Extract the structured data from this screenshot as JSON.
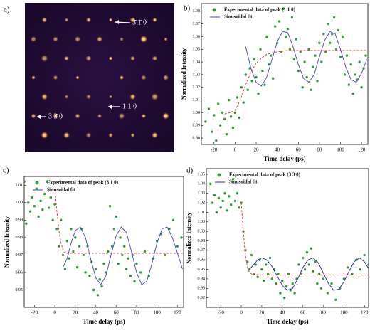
{
  "image": {
    "label": "a)",
    "annotations": [
      "3̄ 1̄ 0",
      "1 1 0",
      "3 3̄ 0"
    ]
  },
  "chart_data": [
    {
      "type": "scatter",
      "label": "b)",
      "xlabel": "Time delay (ps)",
      "ylabel": "Normalized Intensity",
      "xlim": [
        -32,
        126
      ],
      "ylim": [
        0.975,
        1.086
      ],
      "xticks": [
        -20,
        0,
        20,
        40,
        60,
        80,
        100,
        120
      ],
      "yticks": [
        0.98,
        0.99,
        {
          "value": 1,
          "label": "1.00"
        },
        1.01,
        1.02,
        1.03,
        1.04,
        1.05,
        1.06,
        1.07,
        1.08
      ],
      "series": [
        {
          "name": "Experimental data of peak (1 1 0)",
          "color": "#2e9e2e",
          "style": "points",
          "x": [
            -28,
            -25,
            -22,
            -20,
            -18,
            -16,
            -14,
            -12,
            -10,
            -8,
            -6,
            -4,
            -2,
            0,
            2,
            4,
            6,
            8,
            10,
            12,
            14,
            16,
            18,
            20,
            22,
            24,
            26,
            28,
            30,
            32,
            34,
            36,
            38,
            40,
            42,
            44,
            46,
            48,
            50,
            52,
            54,
            56,
            58,
            60,
            62,
            64,
            66,
            68,
            70,
            72,
            74,
            76,
            78,
            80,
            82,
            84,
            86,
            88,
            90,
            92,
            94,
            96,
            98,
            100,
            102,
            104,
            106,
            108,
            110,
            112,
            114,
            116,
            118,
            120,
            122,
            124
          ],
          "values": [
            0.993,
            1.003,
            0.985,
            0.998,
            0.978,
            1.007,
            0.99,
            1.0,
            0.995,
            0.983,
            1.01,
            0.997,
            0.988,
            1.0,
            1.012,
            0.996,
            1.02,
            1.008,
            1.03,
            1.018,
            1.035,
            1.025,
            1.042,
            1.028,
            1.015,
            1.05,
            1.033,
            1.022,
            1.06,
            1.038,
            1.045,
            1.027,
            1.068,
            1.055,
            1.072,
            1.048,
            1.082,
            1.06,
            1.066,
            1.05,
            1.075,
            1.042,
            1.058,
            1.033,
            1.048,
            1.02,
            1.04,
            1.028,
            1.05,
            1.018,
            1.036,
            1.045,
            1.025,
            1.055,
            1.04,
            1.062,
            1.048,
            1.07,
            1.055,
            1.062,
            1.075,
            1.05,
            1.065,
            1.044,
            1.06,
            1.03,
            1.045,
            1.022,
            1.038,
            1.015,
            1.03,
            1.026,
            1.04,
            1.02,
            1.035,
            1.045
          ]
        },
        {
          "name": "Sinusoidal fit",
          "color": "#4040d0",
          "style": "line",
          "x": [
            10,
            15,
            20,
            25,
            30,
            35,
            40,
            45,
            50,
            55,
            60,
            65,
            70,
            75,
            80,
            85,
            90,
            95,
            100,
            105,
            110,
            115,
            120,
            125
          ],
          "values": [
            1.052,
            1.035,
            1.024,
            1.021,
            1.028,
            1.042,
            1.056,
            1.064,
            1.063,
            1.052,
            1.038,
            1.027,
            1.024,
            1.03,
            1.044,
            1.057,
            1.064,
            1.062,
            1.05,
            1.036,
            1.026,
            1.024,
            1.031,
            1.042
          ]
        },
        {
          "color": "#e03030",
          "style": "dashed",
          "x": [
            -10,
            -5,
            0,
            5,
            10,
            15,
            20,
            25,
            30,
            35,
            40,
            50,
            60,
            80,
            100,
            125
          ],
          "values": [
            0.999,
            1.0,
            1.002,
            1.01,
            1.022,
            1.032,
            1.039,
            1.043,
            1.046,
            1.047,
            1.048,
            1.049,
            1.049,
            1.049,
            1.049,
            1.049
          ]
        }
      ]
    },
    {
      "type": "scatter",
      "label": "c)",
      "xlabel": "Time delay (ps)",
      "ylabel": "Normalized Intensity",
      "xlim": [
        -30,
        126
      ],
      "ylim": [
        0.94,
        1.015
      ],
      "xticks": [
        -20,
        0,
        20,
        40,
        60,
        80,
        100,
        120
      ],
      "yticks": [
        0.95,
        0.96,
        0.97,
        0.98,
        0.99,
        {
          "value": 1,
          "label": "1.00"
        },
        1.01
      ],
      "series": [
        {
          "name": "Experimental data of peak (3 1̄ 0)",
          "color": "#2e9e2e",
          "style": "points",
          "x": [
            -30,
            -28,
            -26,
            -24,
            -22,
            -20,
            -18,
            -16,
            -14,
            -12,
            -10,
            -8,
            -6,
            -4,
            -2,
            0,
            2,
            4,
            6,
            8,
            10,
            12,
            14,
            16,
            18,
            20,
            22,
            24,
            26,
            28,
            30,
            32,
            34,
            36,
            38,
            40,
            42,
            44,
            46,
            48,
            50,
            52,
            54,
            56,
            58,
            60,
            62,
            64,
            66,
            68,
            70,
            72,
            74,
            76,
            78,
            80,
            84,
            88,
            92,
            96,
            100,
            104,
            108,
            112,
            116,
            120,
            124
          ],
          "values": [
            1.012,
            0.988,
            1.0,
            0.995,
            1.003,
            0.998,
            1.008,
            0.992,
            1.001,
            0.996,
            1.005,
            1.012,
            0.997,
            1.003,
            0.99,
            0.999,
            0.985,
            0.975,
            0.99,
            0.97,
            0.962,
            0.978,
            0.968,
            0.985,
            0.972,
            0.98,
            0.963,
            0.975,
            0.985,
            0.97,
            0.96,
            0.975,
            0.958,
            0.966,
            0.95,
            0.962,
            0.947,
            0.956,
            0.952,
            0.965,
            0.96,
            0.972,
            0.998,
            0.975,
            0.985,
            0.992,
            0.965,
            0.98,
            0.97,
            0.975,
            0.962,
            0.968,
            0.958,
            0.97,
            0.955,
            0.965,
            0.96,
            0.972,
            0.958,
            0.968,
            0.978,
            0.982,
            0.97,
            0.985,
            0.99,
            0.975,
            0.98
          ]
        },
        {
          "name": "Sinusoidal fit",
          "color": "#4040d0",
          "style": "line",
          "x": [
            8,
            12,
            16,
            20,
            25,
            30,
            35,
            40,
            45,
            50,
            55,
            60,
            65,
            70,
            75,
            80,
            85,
            90,
            95,
            100,
            105,
            110,
            115,
            120,
            125
          ],
          "values": [
            0.963,
            0.968,
            0.977,
            0.984,
            0.986,
            0.98,
            0.968,
            0.957,
            0.953,
            0.958,
            0.97,
            0.981,
            0.986,
            0.983,
            0.972,
            0.96,
            0.953,
            0.955,
            0.965,
            0.977,
            0.985,
            0.986,
            0.98,
            0.971,
            0.962
          ]
        },
        {
          "color": "#e03030",
          "style": "dashed",
          "x": [
            0,
            2,
            4,
            6,
            8,
            10,
            20,
            125
          ],
          "values": [
            1.008,
            0.995,
            0.984,
            0.977,
            0.973,
            0.971,
            0.971,
            0.971
          ]
        }
      ]
    },
    {
      "type": "scatter",
      "label": "d)",
      "xlabel": "Time delay (ps)",
      "ylabel": "Normalized Intensity",
      "xlim": [
        -34,
        124
      ],
      "ylim": [
        0.91,
        1.056
      ],
      "xticks": [
        -20,
        0,
        20,
        40,
        60,
        80,
        100,
        120
      ],
      "yticks": [
        0.92,
        0.93,
        0.94,
        0.95,
        0.96,
        0.97,
        0.98,
        0.99,
        {
          "value": 1,
          "label": "1.00"
        },
        1.01,
        1.02,
        1.03,
        1.04,
        1.05
      ],
      "series": [
        {
          "name": "Experimental data of peak (3 3 0)",
          "color": "#2e9e2e",
          "style": "points",
          "x": [
            -30,
            -28,
            -26,
            -24,
            -22,
            -20,
            -18,
            -16,
            -14,
            -12,
            -10,
            -8,
            -6,
            -4,
            -2,
            0,
            2,
            4,
            6,
            8,
            10,
            12,
            14,
            16,
            18,
            20,
            22,
            24,
            26,
            28,
            30,
            32,
            34,
            36,
            38,
            40,
            42,
            44,
            46,
            48,
            50,
            52,
            54,
            56,
            58,
            60,
            62,
            64,
            66,
            68,
            70,
            72,
            74,
            76,
            78,
            80,
            84,
            88,
            92,
            96,
            100,
            104,
            108,
            112,
            116,
            120,
            124
          ],
          "values": [
            1.04,
            1.02,
            1.028,
            1.01,
            1.025,
            1.015,
            1.022,
            1.03,
            1.012,
            1.027,
            1.018,
            1.045,
            1.022,
            1.03,
            1.015,
            1.02,
            0.99,
            0.97,
            0.958,
            0.95,
            0.965,
            0.945,
            0.955,
            0.942,
            0.96,
            0.95,
            0.938,
            0.955,
            0.945,
            0.962,
            0.94,
            0.95,
            0.935,
            0.945,
            0.925,
            0.938,
            0.92,
            0.932,
            0.945,
            0.928,
            0.935,
            0.925,
            0.94,
            0.955,
            0.945,
            0.962,
            0.95,
            0.968,
            0.955,
            0.972,
            0.948,
            0.958,
            0.935,
            0.945,
            0.93,
            0.94,
            0.925,
            0.935,
            0.918,
            0.93,
            0.94,
            0.952,
            0.945,
            0.96,
            0.95,
            0.965,
            0.955
          ]
        },
        {
          "name": "Sinusoidal fit",
          "color": "#2020a0",
          "style": "line",
          "x": [
            8,
            12,
            16,
            20,
            25,
            30,
            35,
            40,
            45,
            50,
            55,
            60,
            65,
            70,
            75,
            80,
            85,
            90,
            95,
            100,
            105,
            110,
            115,
            120,
            124
          ],
          "values": [
            0.95,
            0.955,
            0.96,
            0.962,
            0.96,
            0.953,
            0.943,
            0.933,
            0.928,
            0.93,
            0.94,
            0.952,
            0.96,
            0.962,
            0.957,
            0.946,
            0.935,
            0.928,
            0.929,
            0.937,
            0.948,
            0.958,
            0.962,
            0.958,
            0.951
          ]
        },
        {
          "color": "#e03030",
          "style": "dashed",
          "x": [
            0,
            2,
            4,
            6,
            8,
            10,
            20,
            124
          ],
          "values": [
            1.02,
            0.99,
            0.965,
            0.952,
            0.947,
            0.945,
            0.944,
            0.944
          ]
        }
      ]
    }
  ]
}
